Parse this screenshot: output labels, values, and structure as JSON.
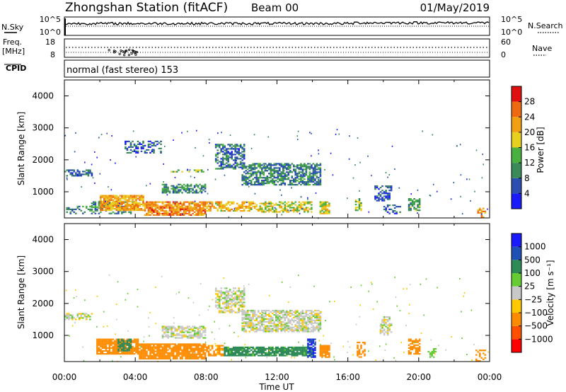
{
  "header": {
    "station": "Zhongshan Station (fitACF)",
    "beam": "Beam 00",
    "date": "01/May/2019"
  },
  "summary_panels": {
    "nsky_label": "N.Sky",
    "nsky_ticks": [
      "10^5",
      "10^0"
    ],
    "nsearch_label": "N.Search",
    "nsearch_ticks": [
      "10^5",
      "10^0"
    ],
    "freq_label_line1": "Freq.",
    "freq_label_line2": "[MHz]",
    "freq_ticks": [
      "18",
      "8"
    ],
    "nave_label": "Nave",
    "nave_ticks": [
      "60",
      "0"
    ],
    "cpid_label": "CPID",
    "cpid_text": "normal (fast stereo) 153"
  },
  "colors": {
    "power": [
      "#1a1aff",
      "#2a4fb0",
      "#3a8a5a",
      "#4ab040",
      "#e8d020",
      "#f0a010",
      "#ee6a10",
      "#e01010"
    ],
    "velocity": [
      "#ff0000",
      "#ff5000",
      "#ff8c00",
      "#ffc800",
      "#c8c8c8",
      "#66cc33",
      "#2e8b57",
      "#1e4fb4",
      "#1a1aff"
    ]
  },
  "chart_data": [
    {
      "type": "heatmap",
      "name": "power",
      "ylabel": "Slant Range [km]",
      "yticks": [
        "1000",
        "2000",
        "3000",
        "4000"
      ],
      "ylim": [
        180,
        4500
      ],
      "colorbar_label": "Power [dB]",
      "colorbar_ticks": [
        "4",
        "8",
        "12",
        "16",
        "20",
        "24",
        "28"
      ],
      "colorbar_range": [
        0,
        32
      ],
      "regions": [
        {
          "t": [
            0.0,
            1.6
          ],
          "r": [
            1480,
            1700
          ],
          "v": 7,
          "d": 0.6
        },
        {
          "t": [
            0.0,
            4.0
          ],
          "r": [
            300,
            560
          ],
          "v": 9,
          "d": 0.35
        },
        {
          "t": [
            1.5,
            4.0
          ],
          "r": [
            500,
            700
          ],
          "v": 10,
          "d": 0.6
        },
        {
          "t": [
            2.0,
            4.5
          ],
          "r": [
            400,
            900
          ],
          "v": 22,
          "d": 0.85
        },
        {
          "t": [
            3.4,
            5.5
          ],
          "r": [
            2200,
            2600
          ],
          "v": 7,
          "d": 0.4
        },
        {
          "t": [
            4.5,
            8.0
          ],
          "r": [
            250,
            700
          ],
          "v": 24,
          "d": 0.8
        },
        {
          "t": [
            5.5,
            8.0
          ],
          "r": [
            950,
            1250
          ],
          "v": 10,
          "d": 0.65
        },
        {
          "t": [
            6.0,
            8.0
          ],
          "r": [
            1600,
            1700
          ],
          "v": 14,
          "d": 0.45
        },
        {
          "t": [
            8.0,
            11.0
          ],
          "r": [
            380,
            700
          ],
          "v": 20,
          "d": 0.65
        },
        {
          "t": [
            8.5,
            10.2
          ],
          "r": [
            1700,
            2500
          ],
          "v": 8,
          "d": 0.55
        },
        {
          "t": [
            10.0,
            14.5
          ],
          "r": [
            1200,
            1900
          ],
          "v": 9,
          "d": 0.65
        },
        {
          "t": [
            11.0,
            14.0
          ],
          "r": [
            350,
            700
          ],
          "v": 17,
          "d": 0.6
        },
        {
          "t": [
            14.4,
            15.0
          ],
          "r": [
            300,
            700
          ],
          "v": 18,
          "d": 0.9
        },
        {
          "t": [
            16.4,
            16.8
          ],
          "r": [
            400,
            800
          ],
          "v": 15,
          "d": 0.6
        },
        {
          "t": [
            17.5,
            18.5
          ],
          "r": [
            700,
            1200
          ],
          "v": 6,
          "d": 0.5
        },
        {
          "t": [
            18.0,
            19.0
          ],
          "r": [
            300,
            600
          ],
          "v": 7,
          "d": 0.4
        },
        {
          "t": [
            19.4,
            20.1
          ],
          "r": [
            400,
            800
          ],
          "v": 12,
          "d": 0.7
        },
        {
          "t": [
            23.3,
            23.8
          ],
          "r": [
            180,
            500
          ],
          "v": 22,
          "d": 0.35
        }
      ]
    },
    {
      "type": "heatmap",
      "name": "velocity",
      "xlabel": "Time UT",
      "xticks": [
        "00:00",
        "04:00",
        "08:00",
        "12:00",
        "16:00",
        "20:00",
        "00:00"
      ],
      "xlim": [
        0,
        24
      ],
      "ylabel": "Slant Range [km]",
      "yticks": [
        "1000",
        "2000",
        "3000",
        "4000"
      ],
      "ylim": [
        180,
        4500
      ],
      "colorbar_label": "Velocity [m s⁻¹]",
      "colorbar_ticks": [
        "1000",
        "500",
        "100",
        "25",
        "−25",
        "−100",
        "−500",
        "−1000"
      ],
      "colorbar_bins": [
        -1000,
        -500,
        -100,
        -25,
        25,
        100,
        500,
        1000
      ],
      "regions": [
        {
          "t": [
            0.0,
            1.6
          ],
          "r": [
            1480,
            1700
          ],
          "v": 0,
          "d": 0.55
        },
        {
          "t": [
            1.8,
            4.2
          ],
          "r": [
            400,
            900
          ],
          "v": -200,
          "d": 0.85
        },
        {
          "t": [
            3.0,
            3.8
          ],
          "r": [
            500,
            900
          ],
          "v": 300,
          "d": 0.6
        },
        {
          "t": [
            4.2,
            8.0
          ],
          "r": [
            250,
            750
          ],
          "v": -300,
          "d": 0.85
        },
        {
          "t": [
            5.5,
            8.0
          ],
          "r": [
            900,
            1300
          ],
          "v": 0,
          "d": 0.7
        },
        {
          "t": [
            8.0,
            9.0
          ],
          "r": [
            350,
            700
          ],
          "v": -150,
          "d": 0.6
        },
        {
          "t": [
            8.5,
            10.2
          ],
          "r": [
            1700,
            2500
          ],
          "v": 0,
          "d": 0.6
        },
        {
          "t": [
            9.0,
            14.0
          ],
          "r": [
            350,
            650
          ],
          "v": 150,
          "d": 0.85
        },
        {
          "t": [
            10.0,
            14.5
          ],
          "r": [
            1100,
            1800
          ],
          "v": 0,
          "d": 0.7
        },
        {
          "t": [
            13.7,
            14.2
          ],
          "r": [
            300,
            900
          ],
          "v": 900,
          "d": 0.8
        },
        {
          "t": [
            14.4,
            15.0
          ],
          "r": [
            300,
            700
          ],
          "v": -200,
          "d": 0.9
        },
        {
          "t": [
            16.5,
            17.0
          ],
          "r": [
            300,
            800
          ],
          "v": -200,
          "d": 0.6
        },
        {
          "t": [
            17.8,
            18.5
          ],
          "r": [
            1000,
            1600
          ],
          "v": 0,
          "d": 0.5
        },
        {
          "t": [
            19.4,
            20.1
          ],
          "r": [
            400,
            900
          ],
          "v": -200,
          "d": 0.7
        },
        {
          "t": [
            20.5,
            21.0
          ],
          "r": [
            300,
            600
          ],
          "v": 60,
          "d": 0.4
        },
        {
          "t": [
            23.2,
            23.8
          ],
          "r": [
            180,
            600
          ],
          "v": -300,
          "d": 0.35
        }
      ]
    }
  ]
}
